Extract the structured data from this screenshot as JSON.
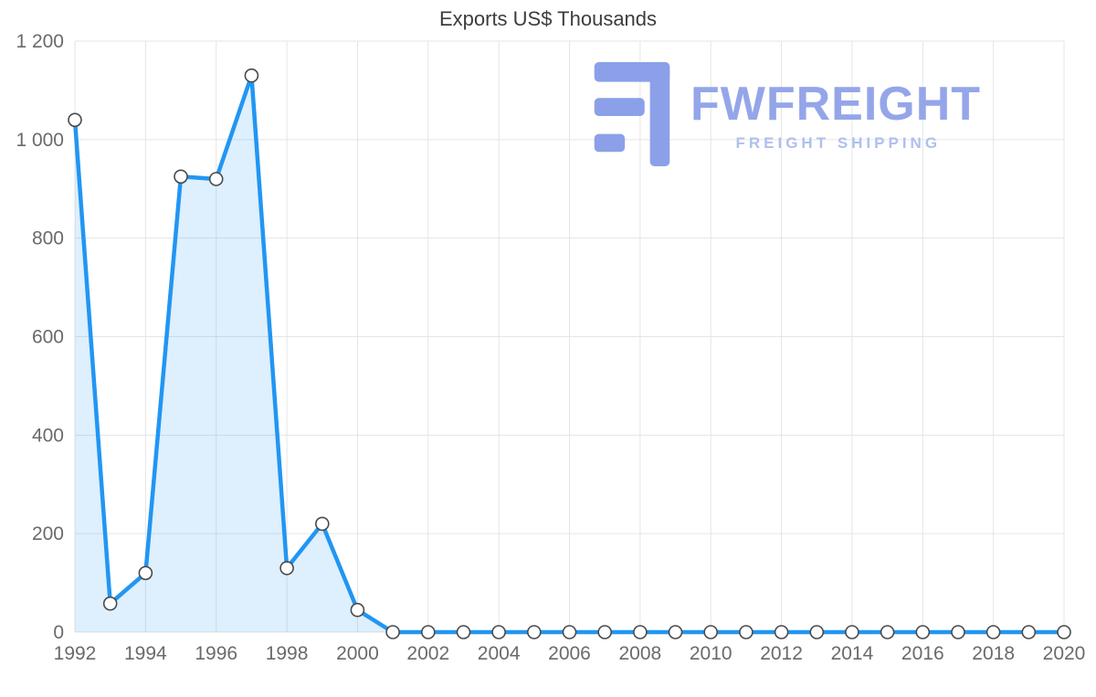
{
  "watermark": {
    "brand": "FWFREIGHT",
    "tagline": "FREIGHT SHIPPING",
    "brand_color": "#94a6e9",
    "tagline_color": "#b0bfef",
    "icon_color": "#8ba0e8",
    "icon_name": "fwfreight-logo-icon"
  },
  "chart_data": {
    "type": "area",
    "title": "Exports US$ Thousands",
    "xlabel": "",
    "ylabel": "",
    "x": [
      1992,
      1993,
      1994,
      1995,
      1996,
      1997,
      1998,
      1999,
      2000,
      2001,
      2002,
      2003,
      2004,
      2005,
      2006,
      2007,
      2008,
      2009,
      2010,
      2011,
      2012,
      2013,
      2014,
      2015,
      2016,
      2017,
      2018,
      2019,
      2020
    ],
    "values": [
      1040,
      58,
      120,
      925,
      920,
      1130,
      130,
      220,
      45,
      0,
      0,
      0,
      0,
      0,
      0,
      0,
      0,
      0,
      0,
      0,
      0,
      0,
      0,
      0,
      0,
      0,
      0,
      0,
      0
    ],
    "ylim": [
      0,
      1200
    ],
    "ytick_step": 200,
    "ytick_labels": [
      "0",
      "200",
      "400",
      "600",
      "800",
      "1 000",
      "1 200"
    ],
    "xticks": [
      1992,
      1994,
      1996,
      1998,
      2000,
      2002,
      2004,
      2006,
      2008,
      2010,
      2012,
      2014,
      2016,
      2018,
      2020
    ],
    "grid": true,
    "legend": false,
    "colors": {
      "line": "#2196f3",
      "fill": "#2196f3",
      "fill_opacity": 0.15,
      "marker_fill": "#ffffff",
      "marker_stroke": "#4a4a4a",
      "grid": "#e5e5e5",
      "axis_text": "#6a6a6a",
      "title_text": "#3d3d3d"
    }
  }
}
